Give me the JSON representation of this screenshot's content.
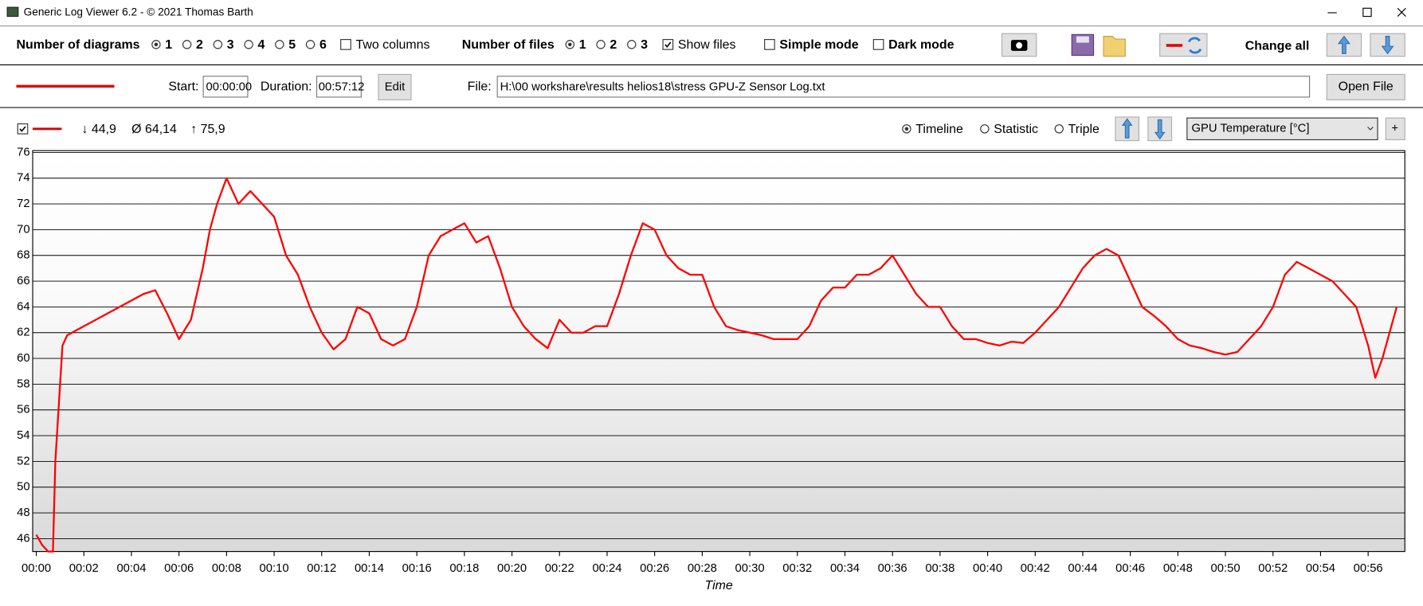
{
  "window": {
    "title": "Generic Log Viewer 6.2 - © 2021 Thomas Barth"
  },
  "toolbar": {
    "diagrams_label": "Number of diagrams",
    "diagram_options": [
      "1",
      "2",
      "3",
      "4",
      "5",
      "6"
    ],
    "two_columns": "Two columns",
    "files_label": "Number of files",
    "file_options": [
      "1",
      "2",
      "3"
    ],
    "show_files": "Show files",
    "simple_mode": "Simple mode",
    "dark_mode": "Dark mode",
    "change_all": "Change all"
  },
  "file_bar": {
    "start_label": "Start:",
    "start": "00:00:00",
    "duration_label": "Duration:",
    "duration": "00:57:12",
    "edit": "Edit",
    "file_label": "File:",
    "file_path": "H:\\00 workshare\\results helios18\\stress GPU-Z Sensor Log.txt",
    "open_file": "Open File"
  },
  "diagram_bar": {
    "min": "↓ 44,9",
    "avg": "Ø 64,14",
    "max": "↑ 75,9",
    "views": [
      "Timeline",
      "Statistic",
      "Triple"
    ],
    "add": "+"
  },
  "chart_data": {
    "type": "line",
    "x_label": "Time",
    "x": [
      0,
      0.25,
      0.5,
      0.7,
      0.8,
      1,
      1.1,
      1.3,
      2,
      3,
      4,
      4.5,
      5,
      5.5,
      6,
      6.5,
      7,
      7.3,
      7.6,
      8,
      8.5,
      9,
      9.5,
      10,
      10.5,
      11,
      11.5,
      12,
      12.5,
      13,
      13.5,
      14,
      14.5,
      15,
      15.5,
      16,
      16.5,
      17,
      17.5,
      18,
      18.5,
      19,
      19.5,
      20,
      20.5,
      21,
      21.5,
      22,
      22.5,
      23,
      23.5,
      24,
      24.5,
      25,
      25.5,
      26,
      26.5,
      27,
      27.5,
      28,
      28.5,
      29,
      29.5,
      30,
      30.5,
      31,
      31.5,
      32,
      32.5,
      33,
      33.5,
      34,
      34.5,
      35,
      35.5,
      36,
      36.5,
      37,
      37.5,
      38,
      38.5,
      39,
      39.5,
      40,
      40.5,
      41,
      41.5,
      42,
      42.5,
      43,
      43.5,
      44,
      44.5,
      45,
      45.5,
      46,
      46.5,
      47,
      47.5,
      48,
      48.5,
      49,
      49.5,
      50,
      50.5,
      51,
      51.5,
      52,
      52.5,
      53,
      53.5,
      54,
      54.5,
      55,
      55.5,
      56,
      56.3,
      56.6,
      56.9,
      57.2
    ],
    "series": [
      {
        "name": "GPU Temperature [°C]",
        "color": "#ff0000",
        "values": [
          46.3,
          45.5,
          45,
          45,
          52,
          58,
          61,
          61.8,
          62.5,
          63.5,
          64.5,
          65,
          65.3,
          63.5,
          61.5,
          63,
          67,
          70,
          72,
          74,
          72,
          73,
          72,
          71,
          68,
          66.5,
          64,
          62,
          60.7,
          61.5,
          64,
          63.5,
          61.5,
          61,
          61.5,
          64,
          68,
          69.5,
          70,
          70.5,
          69,
          69.5,
          67,
          64,
          62.5,
          61.5,
          60.8,
          63,
          62,
          62,
          62.5,
          62.5,
          65,
          68,
          70.5,
          70,
          68,
          67,
          66.5,
          66.5,
          64,
          62.5,
          62.2,
          62,
          61.8,
          61.5,
          61.5,
          61.5,
          62.5,
          64.5,
          65.5,
          65.5,
          66.5,
          66.5,
          67,
          68,
          66.5,
          65,
          64,
          64,
          62.5,
          61.5,
          61.5,
          61.2,
          61,
          61.3,
          61.2,
          62,
          63,
          64,
          65.5,
          67,
          68,
          68.5,
          68,
          66,
          64,
          63.3,
          62.5,
          61.5,
          61,
          60.8,
          60.5,
          60.3,
          60.5,
          61.5,
          62.5,
          64,
          66.5,
          67.5,
          67,
          66.5,
          66,
          65,
          64,
          61,
          58.5,
          60,
          62,
          64
        ]
      }
    ],
    "xlim": [
      0,
      57.2
    ],
    "xticks": [
      {
        "value": 0,
        "label": "00:00"
      },
      {
        "value": 2,
        "label": "00:02"
      },
      {
        "value": 4,
        "label": "00:04"
      },
      {
        "value": 6,
        "label": "00:06"
      },
      {
        "value": 8,
        "label": "00:08"
      },
      {
        "value": 10,
        "label": "00:10"
      },
      {
        "value": 12,
        "label": "00:12"
      },
      {
        "value": 14,
        "label": "00:14"
      },
      {
        "value": 16,
        "label": "00:16"
      },
      {
        "value": 18,
        "label": "00:18"
      },
      {
        "value": 20,
        "label": "00:20"
      },
      {
        "value": 22,
        "label": "00:22"
      },
      {
        "value": 24,
        "label": "00:24"
      },
      {
        "value": 26,
        "label": "00:26"
      },
      {
        "value": 28,
        "label": "00:28"
      },
      {
        "value": 30,
        "label": "00:30"
      },
      {
        "value": 32,
        "label": "00:32"
      },
      {
        "value": 34,
        "label": "00:34"
      },
      {
        "value": 36,
        "label": "00:36"
      },
      {
        "value": 38,
        "label": "00:38"
      },
      {
        "value": 40,
        "label": "00:40"
      },
      {
        "value": 42,
        "label": "00:42"
      },
      {
        "value": 44,
        "label": "00:44"
      },
      {
        "value": 46,
        "label": "00:46"
      },
      {
        "value": 48,
        "label": "00:48"
      },
      {
        "value": 50,
        "label": "00:50"
      },
      {
        "value": 52,
        "label": "00:52"
      },
      {
        "value": 54,
        "label": "00:54"
      },
      {
        "value": 56,
        "label": "00:56"
      }
    ],
    "ylim": [
      45,
      76
    ],
    "yticks": [
      46,
      48,
      50,
      52,
      54,
      56,
      58,
      60,
      62,
      64,
      66,
      68,
      70,
      72,
      74,
      76
    ],
    "grid": true
  }
}
